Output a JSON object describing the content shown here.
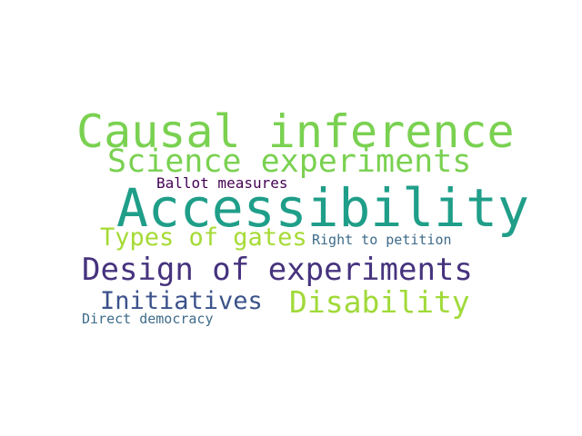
{
  "words": [
    {
      "text": "Causal inference",
      "color": "#7ad151"
    },
    {
      "text": "Science experiments",
      "color": "#7ad151"
    },
    {
      "text": "Ballot measures",
      "color": "#440154"
    },
    {
      "text": "Accessibility",
      "color": "#1f9e89"
    },
    {
      "text": "Types of gates",
      "color": "#a5db36"
    },
    {
      "text": "Right to petition",
      "color": "#3e6b8a"
    },
    {
      "text": "Design of experiments",
      "color": "#46337e"
    },
    {
      "text": "Initiatives",
      "color": "#3b528b"
    },
    {
      "text": "Disability",
      "color": "#a0da39"
    },
    {
      "text": "Direct democracy",
      "color": "#3e6b8a"
    }
  ]
}
